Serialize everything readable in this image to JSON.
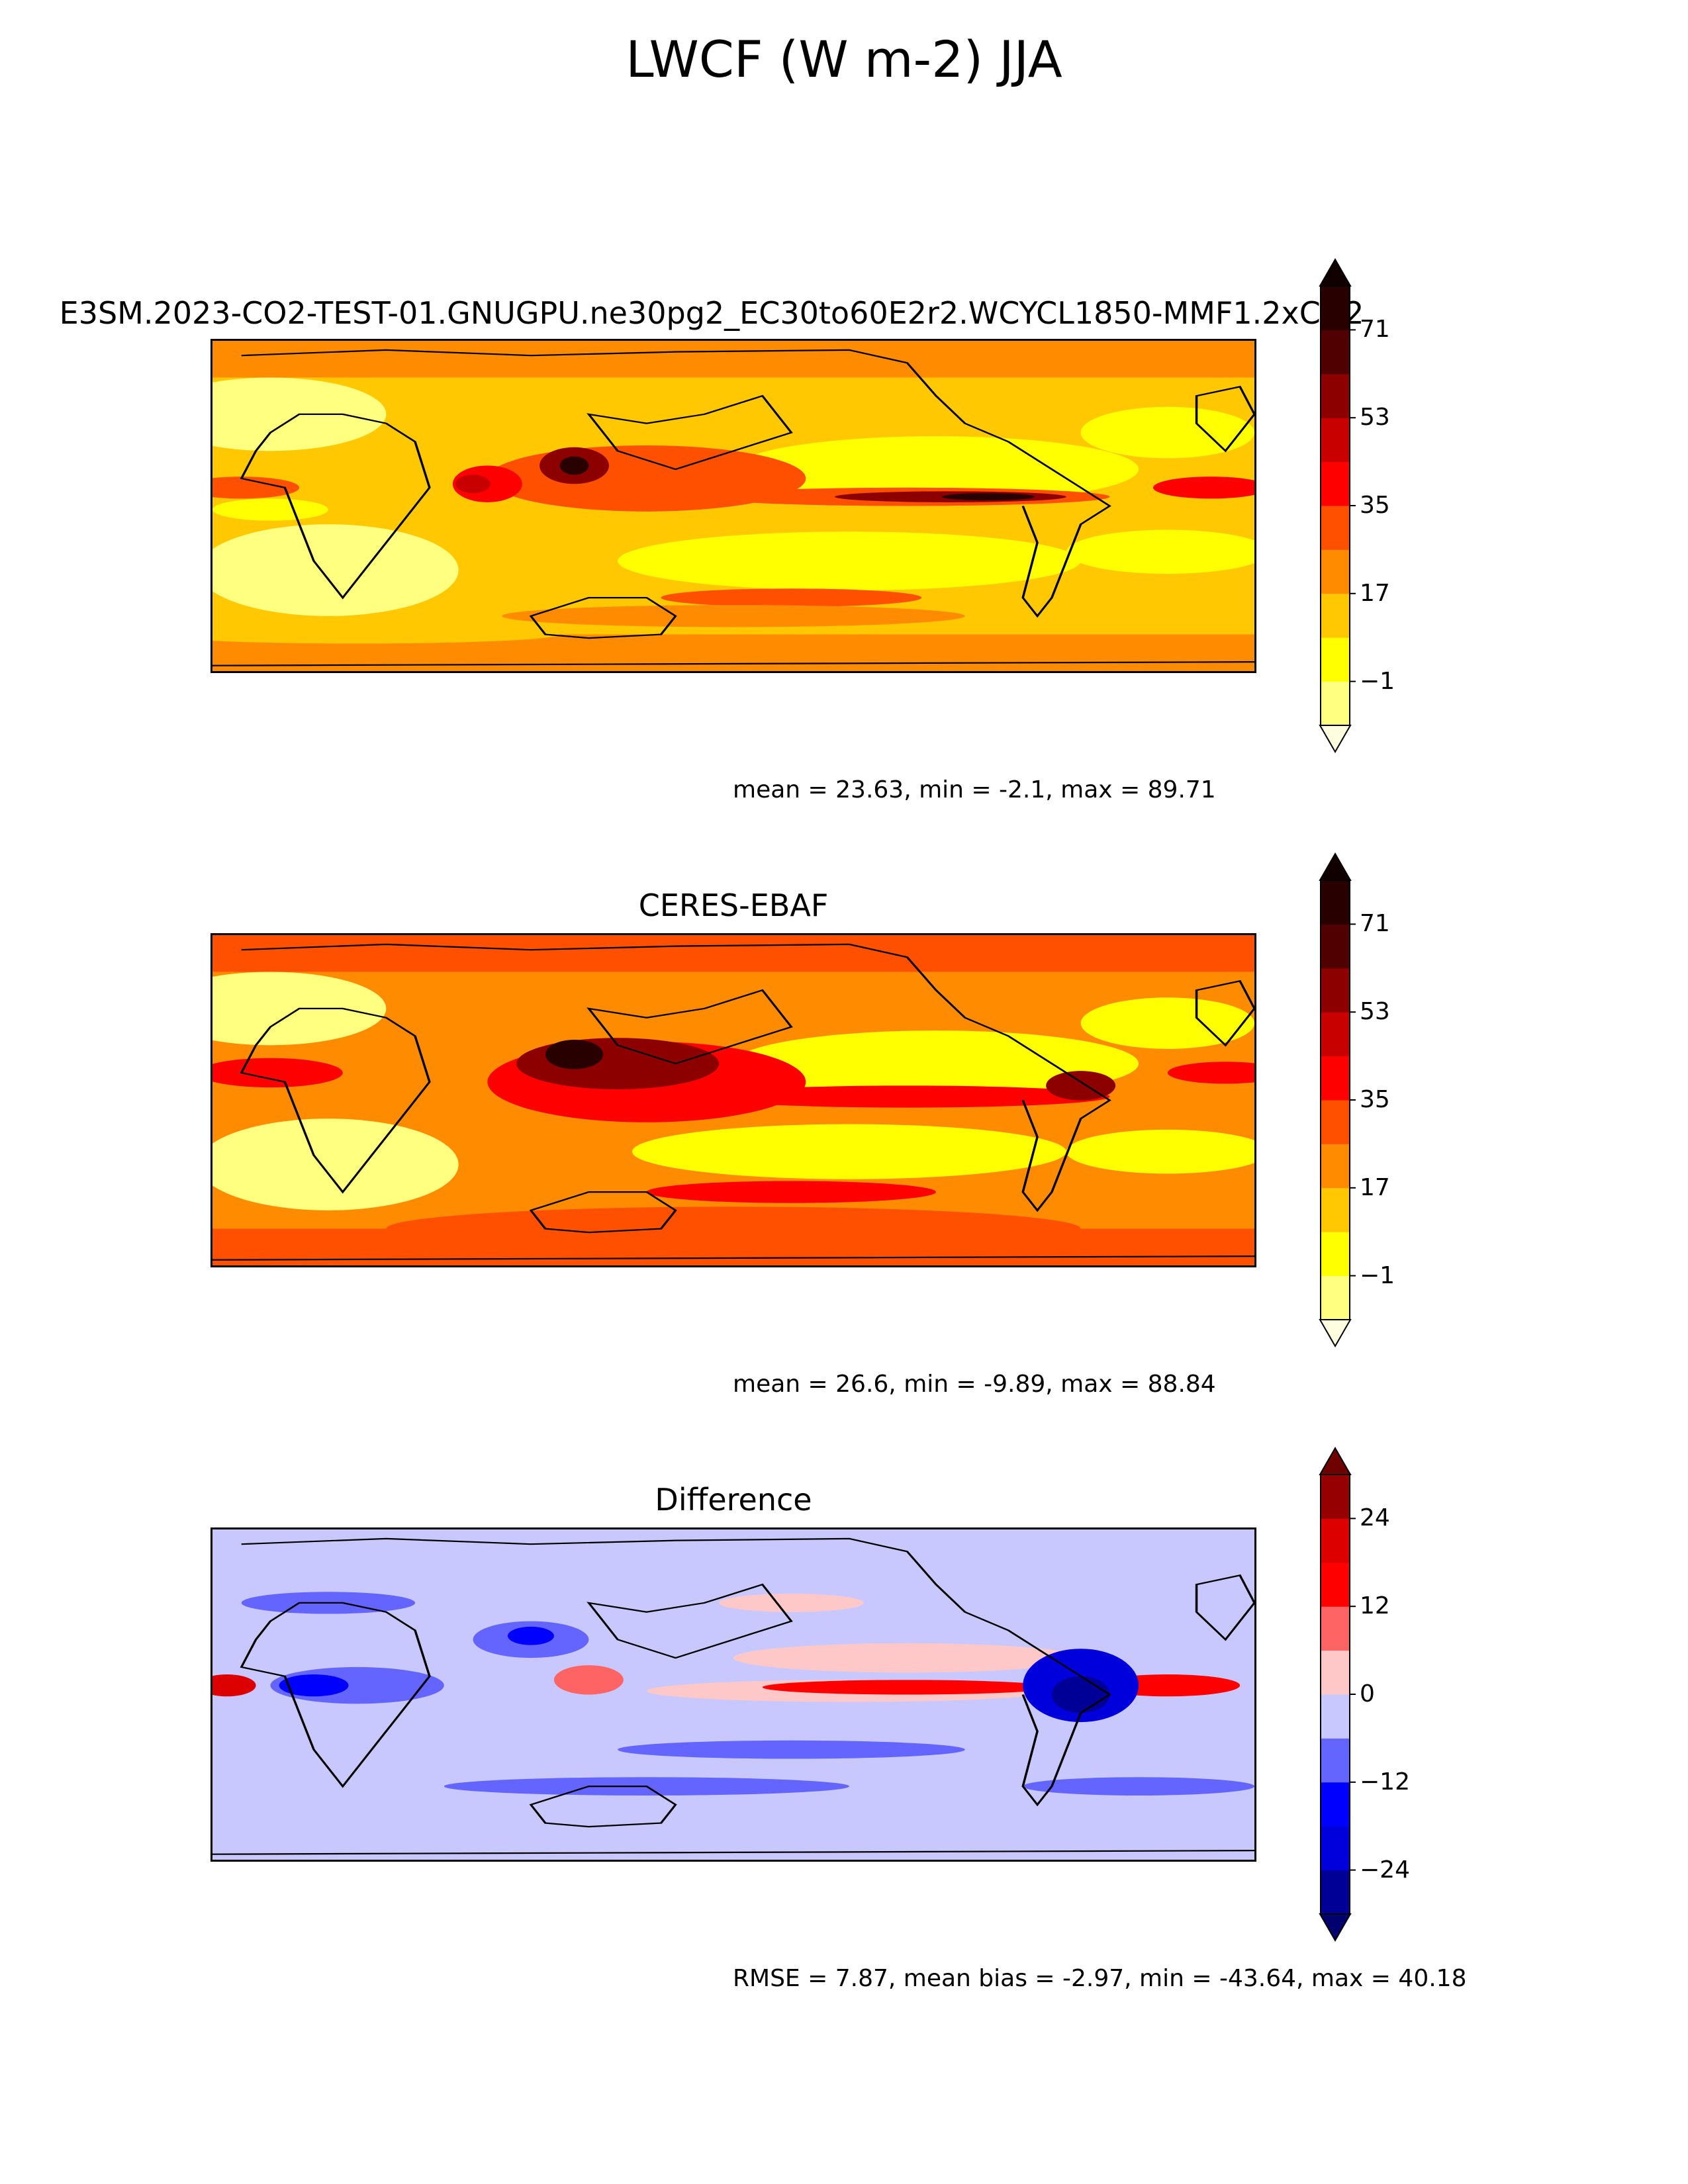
{
  "title": "LWCF (W m-2) JJA",
  "chart_data": [
    {
      "type": "heatmap",
      "title": "E3SM.2023-CO2-TEST-01.GNUGPU.ne30pg2_EC30to60E2r2.WCYCL1850-MMF1.2xCO2",
      "levels": [
        -10,
        -1,
        8,
        17,
        26,
        35,
        44,
        53,
        62,
        71,
        80
      ],
      "tick_values": [
        71,
        53,
        35,
        17,
        -1
      ],
      "tick_labels": [
        "71",
        "53",
        "35",
        "17",
        "−1"
      ],
      "colors": [
        "#fffde0",
        "#ffff80",
        "#ffff00",
        "#ffc800",
        "#ff8c00",
        "#ff5000",
        "#ff0000",
        "#c80000",
        "#8c0000",
        "#500000",
        "#280000",
        "#100000"
      ],
      "stats": "mean = 23.63, min = -2.1, max = 89.71"
    },
    {
      "type": "heatmap",
      "title": "CERES-EBAF",
      "levels": [
        -10,
        -1,
        8,
        17,
        26,
        35,
        44,
        53,
        62,
        71,
        80
      ],
      "tick_values": [
        71,
        53,
        35,
        17,
        -1
      ],
      "tick_labels": [
        "71",
        "53",
        "35",
        "17",
        "−1"
      ],
      "colors": [
        "#fffde0",
        "#ffff80",
        "#ffff00",
        "#ffc800",
        "#ff8c00",
        "#ff5000",
        "#ff0000",
        "#c80000",
        "#8c0000",
        "#500000",
        "#280000",
        "#100000"
      ],
      "stats": "mean = 26.6, min = -9.89, max = 88.84"
    },
    {
      "type": "heatmap",
      "title": "Difference",
      "levels": [
        -30,
        -24,
        -18,
        -12,
        -6,
        0,
        6,
        12,
        18,
        24,
        30
      ],
      "tick_values": [
        24,
        12,
        0,
        -12,
        -24
      ],
      "tick_labels": [
        "24",
        "12",
        "0",
        "−12",
        "−24"
      ],
      "colors": [
        "#00006e",
        "#000096",
        "#0000dc",
        "#0000ff",
        "#6464ff",
        "#c8c8ff",
        "#ffc8c8",
        "#ff6464",
        "#ff0000",
        "#dc0000",
        "#960000",
        "#6e0000"
      ],
      "stats": "RMSE = 7.87, mean bias = -2.97, min = -43.64, max = 40.18"
    }
  ]
}
